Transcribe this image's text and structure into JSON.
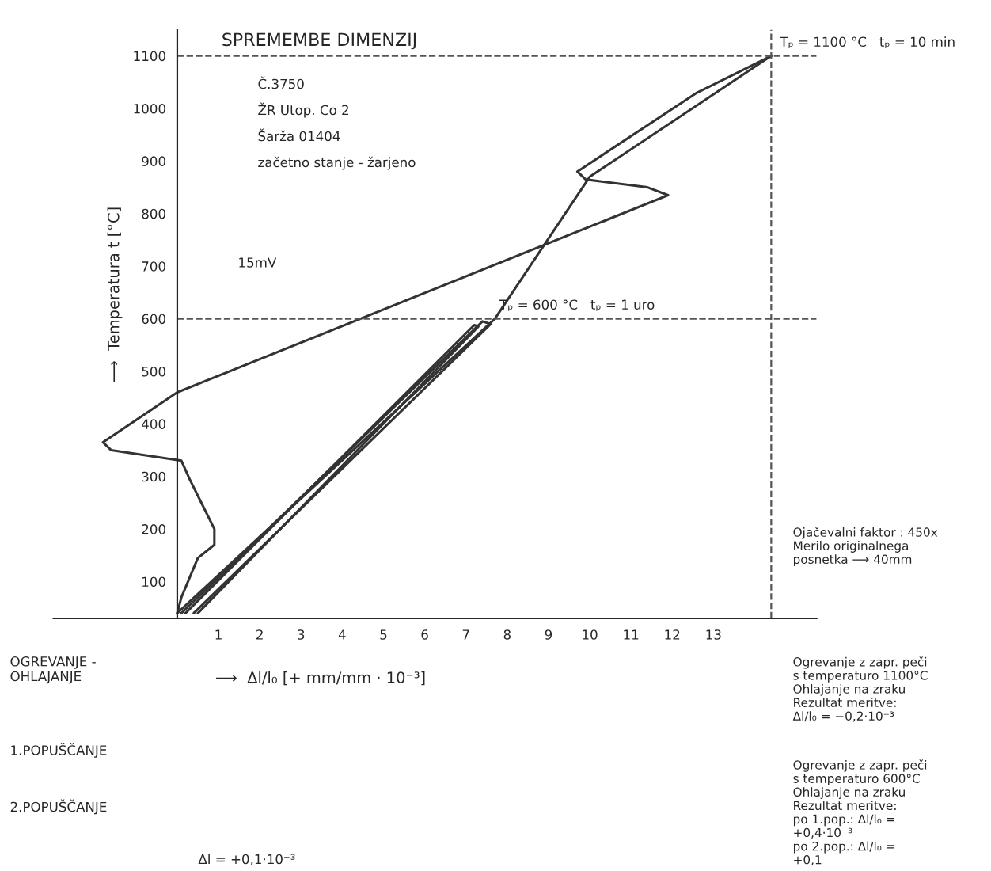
{
  "chart_data": {
    "type": "line",
    "title": "SPREMEMBE DIMENZIJ",
    "xlabel": "⟶  Δl/l₀ [+ mm/mm · 10⁻³]",
    "ylabel": "⟶  Temperatura t [°C]",
    "xlim": [
      -3,
      15.5
    ],
    "ylim": [
      30,
      1150
    ],
    "xticks": [
      1,
      2,
      3,
      4,
      5,
      6,
      7,
      8,
      9,
      10,
      11,
      12,
      13
    ],
    "yticks": [
      100,
      200,
      300,
      400,
      500,
      600,
      700,
      800,
      900,
      1000,
      1100
    ],
    "grid": false,
    "legend": false,
    "marker": "none",
    "line_style": "solid",
    "series": [
      {
        "color": "#333333",
        "x": [
          0,
          7.7,
          10.0,
          14.4
        ],
        "values": [
          40,
          600,
          870,
          1100
        ]
      },
      {
        "color": "#333333",
        "x": [
          14.4,
          12.6,
          9.7,
          9.9,
          11.4,
          11.9,
          0,
          -1.8,
          -1.6,
          0.1,
          0.3,
          0.9,
          0.9,
          0.5,
          0.1,
          0.0
        ],
        "values": [
          1100,
          1030,
          880,
          865,
          850,
          835,
          460,
          365,
          350,
          330,
          295,
          200,
          170,
          145,
          70,
          40
        ]
      },
      {
        "color": "#333333",
        "x": [
          0.1,
          7.4,
          7.6,
          0.4
        ],
        "values": [
          40,
          595,
          590,
          40
        ]
      },
      {
        "color": "#333333",
        "x": [
          0.2,
          7.2,
          7.3,
          0.5
        ],
        "values": [
          40,
          588,
          585,
          40
        ]
      }
    ],
    "ref_lines": [
      {
        "axis": "y",
        "value": 1100,
        "line_style": "dashed"
      },
      {
        "axis": "y",
        "value": 600,
        "line_style": "dashed"
      },
      {
        "axis": "x",
        "value": 14.4,
        "line_style": "dashed"
      }
    ],
    "annotations": [
      "Č.3750",
      "ŽR Utop. Co 2",
      "Šarža 01404",
      "začetno stanje - žarjeno",
      "15mV",
      {
        "text": "Tₚ = 1100 °C   tₚ = 10 min",
        "x": 14.4,
        "y": 1100
      },
      {
        "text": "Tₚ = 600 °C   tₚ = 1 uro",
        "x": 7.6,
        "y": 600
      },
      "Ojačevalni faktor : 450x\nMerilo originalnega\nposnetka ⟶ 40mm",
      "Ogrevanje z zapr. peči\ns temperaturo 1100°C\nOhlajanje na zraku\nRezultat meritve:\nΔl/l₀ = −0,2·10⁻³",
      "Ogrevanje z zapr. peči\ns temperaturo 600°C\nOhlajanje na zraku\nRezultat meritve:\npo 1.pop.: Δl/l₀ =\n+0,4·10⁻³\npo 2.pop.: Δl/l₀ =\n+0,1",
      "OGREVANJE -\nOHLAJANJE",
      "1.POPUŠČANJE",
      "2.POPUŠČANJE",
      "Δl = +0,1·10⁻³"
    ]
  }
}
